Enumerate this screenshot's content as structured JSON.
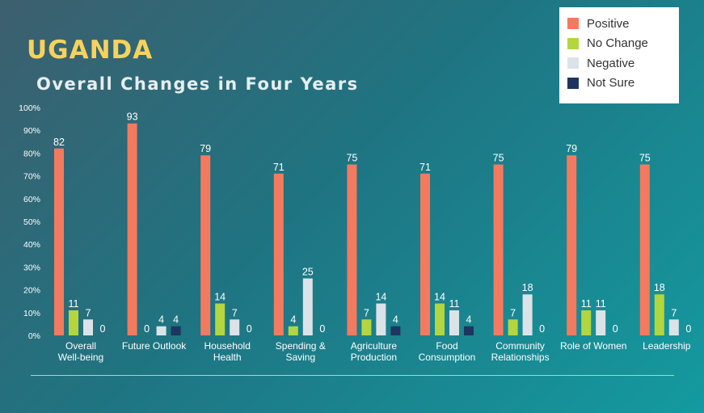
{
  "header": {
    "title": "UGANDA",
    "subtitle": "Overall Changes in Four Years"
  },
  "colors": {
    "Positive": "#f47a5f",
    "No Change": "#b3d63f",
    "Negative": "#dbe3e8",
    "Not Sure": "#1e3560"
  },
  "chart_data": {
    "type": "bar",
    "yticks": [
      "0%",
      "10%",
      "20%",
      "30%",
      "40%",
      "50%",
      "60%",
      "70%",
      "80%",
      "90%",
      "100%"
    ],
    "ylim": [
      0,
      100
    ],
    "legend": "top-right",
    "grid": false,
    "categories": [
      [
        "Overall",
        "Well-being"
      ],
      [
        "Future Outlook"
      ],
      [
        "Household",
        "Health"
      ],
      [
        "Spending &",
        "Saving"
      ],
      [
        "Agriculture",
        "Production"
      ],
      [
        "Food",
        "Consumption"
      ],
      [
        "Community",
        "Relationships"
      ],
      [
        "Role of Women"
      ],
      [
        "Leadership"
      ]
    ],
    "series": [
      {
        "name": "Positive",
        "values": [
          82,
          93,
          79,
          71,
          75,
          71,
          75,
          79,
          75
        ]
      },
      {
        "name": "No Change",
        "values": [
          11,
          0,
          14,
          4,
          7,
          14,
          7,
          11,
          18
        ]
      },
      {
        "name": "Negative",
        "values": [
          7,
          4,
          7,
          25,
          14,
          11,
          18,
          11,
          7
        ]
      },
      {
        "name": "Not Sure",
        "values": [
          0,
          4,
          0,
          0,
          4,
          4,
          0,
          0,
          0
        ]
      }
    ]
  }
}
